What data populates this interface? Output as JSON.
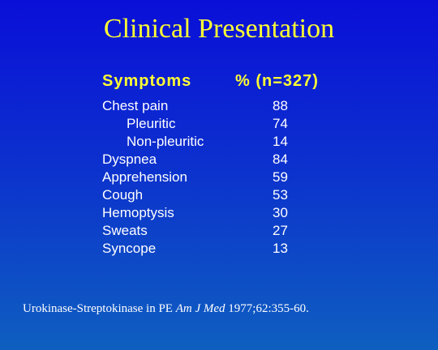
{
  "slide": {
    "title": "Clinical Presentation",
    "colors": {
      "title": "#ffff33",
      "text": "#ffffff",
      "background_top": "#0a0fd8",
      "background_bottom": "#0e5fc0"
    }
  },
  "table": {
    "header_symptoms": "Symptoms",
    "header_percent": "% (n=327)",
    "rows": [
      {
        "label": "Chest pain",
        "value": "88"
      },
      {
        "label": "Pleuritic",
        "value": "74"
      },
      {
        "label": "Non-pleuritic",
        "value": "14"
      },
      {
        "label": "Dyspnea",
        "value": "84"
      },
      {
        "label": "Apprehension",
        "value": "59"
      },
      {
        "label": "Cough",
        "value": "53"
      },
      {
        "label": "Hemoptysis",
        "value": "30"
      },
      {
        "label": "Sweats",
        "value": "27"
      },
      {
        "label": "Syncope",
        "value": "13"
      }
    ]
  },
  "citation": {
    "prefix": "Urokinase-Streptokinase in PE  ",
    "journal": "Am J Med",
    "suffix": " 1977;62:355-60."
  }
}
